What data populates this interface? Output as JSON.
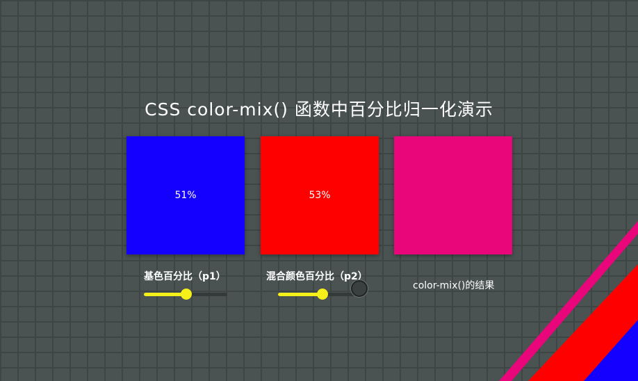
{
  "title": "CSS color-mix() 函数中百分比归一化演示",
  "swatches": {
    "base": {
      "text": "51%",
      "color": "#1400ff"
    },
    "mix": {
      "text": "53%",
      "color": "#ff0000"
    },
    "result": {
      "text": "",
      "color": "#e8067a"
    }
  },
  "labels": {
    "p1": "基色百分比（p1）",
    "p2": "混合颜色百分比（p2）",
    "result": "color-mix()的结果"
  },
  "sliders": {
    "p1": {
      "value": 0.51
    },
    "p2": {
      "value": 0.53
    }
  },
  "colors": {
    "background": "#4a5352",
    "accent": "#f5ef1a",
    "stripe_pink": "#e8067a",
    "stripe_red": "#ff0000",
    "stripe_blue": "#1400ff"
  }
}
